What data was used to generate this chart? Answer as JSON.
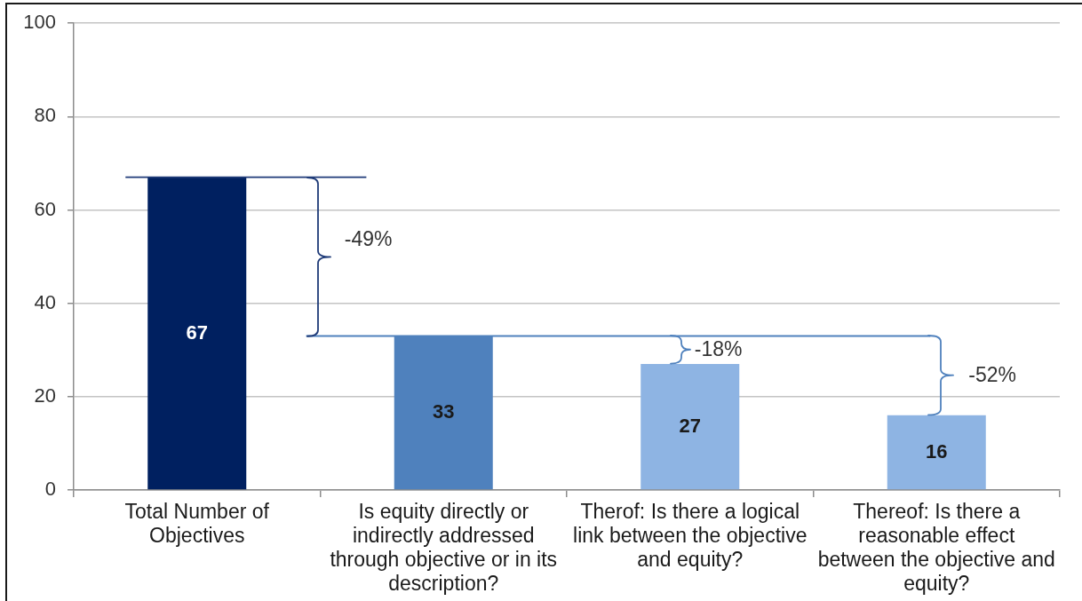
{
  "chart_data": {
    "type": "bar",
    "categories": [
      "Total Number of Objectives",
      "Is equity directly or indirectly addressed through objective or in its description?",
      "Therof: Is there a logical link between the objective and equity?",
      "Thereof: Is there a reasonable effect between the objective and equity?"
    ],
    "values": [
      67,
      33,
      27,
      16
    ],
    "colors": [
      "#002060",
      "#4f81bd",
      "#8eb4e3",
      "#8eb4e3"
    ],
    "ylim": [
      0,
      100
    ],
    "yticks": [
      0,
      20,
      40,
      60,
      80,
      100
    ],
    "grid": "y",
    "data_labels": true,
    "ref_lines": [
      {
        "axis": "y",
        "value": 67,
        "color": "#1f3b78"
      },
      {
        "axis": "y",
        "value": 33,
        "color": "#4f81bd"
      }
    ],
    "annotations": [
      "-49%",
      "-18%",
      "-52%"
    ]
  }
}
